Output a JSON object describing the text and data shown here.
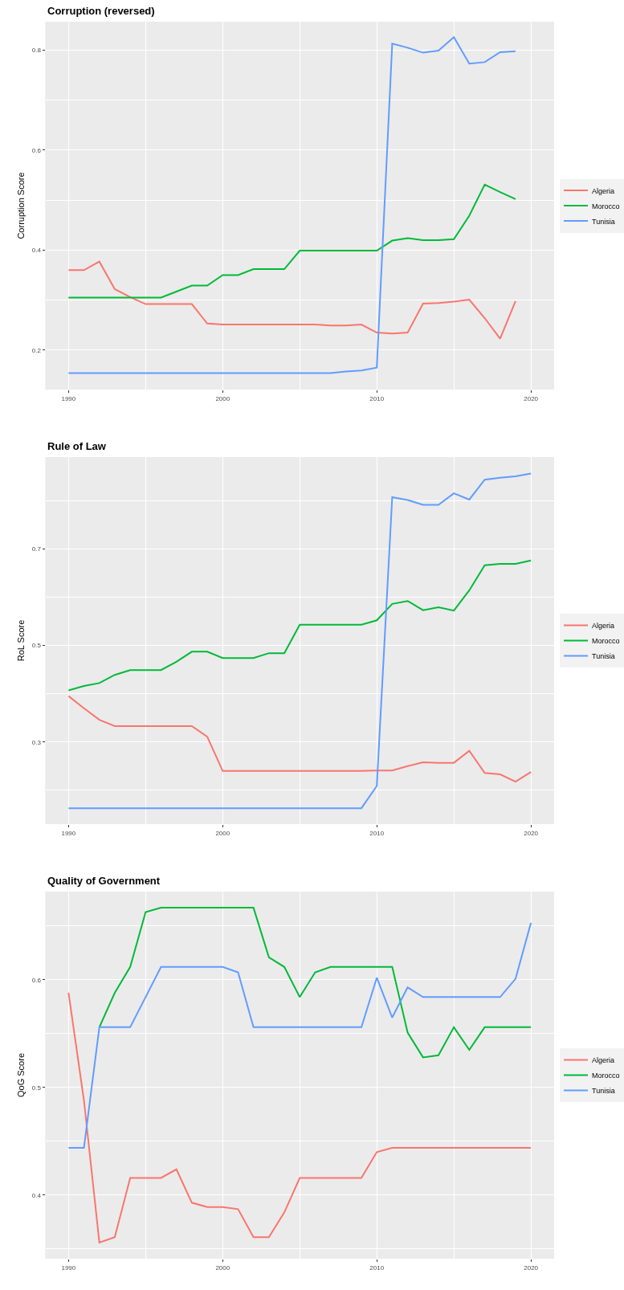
{
  "chart_data": [
    {
      "type": "line",
      "title": "Corruption (reversed)",
      "ylabel": "Corruption Score",
      "grid": true,
      "legend": "right",
      "marker": "none",
      "line_style": "solid",
      "x": [
        1990,
        1991,
        1992,
        1993,
        1994,
        1995,
        1996,
        1997,
        1998,
        1999,
        2000,
        2001,
        2002,
        2003,
        2004,
        2005,
        2006,
        2007,
        2008,
        2009,
        2010,
        2011,
        2012,
        2013,
        2014,
        2015,
        2016,
        2017,
        2018,
        2019
      ],
      "xlim": [
        1988.5,
        2021.5
      ],
      "xticks": [
        1990,
        {
          "value": 1995,
          "label": null
        },
        2000,
        {
          "value": 2005,
          "label": null
        },
        2010,
        {
          "value": 2015,
          "label": null
        },
        2020
      ],
      "ylim": [
        0.121,
        0.857
      ],
      "yticks": [
        0.2,
        {
          "value": 0.3,
          "label": null
        },
        0.4,
        {
          "value": 0.5,
          "label": null
        },
        0.6,
        {
          "value": 0.7,
          "label": null
        },
        0.8
      ],
      "series": [
        {
          "name": "Algeria",
          "color": "#f8766d",
          "values": [
            0.36,
            0.36,
            0.377,
            0.322,
            0.306,
            0.292,
            0.292,
            0.292,
            0.292,
            0.253,
            0.251,
            0.251,
            0.251,
            0.251,
            0.251,
            0.251,
            0.251,
            0.249,
            0.249,
            0.251,
            0.235,
            0.233,
            0.235,
            0.293,
            0.294,
            0.297,
            0.301,
            0.264,
            0.223,
            0.298
          ]
        },
        {
          "name": "Morocco",
          "color": "#00ba38",
          "values": [
            0.305,
            0.305,
            0.305,
            0.305,
            0.305,
            0.305,
            0.305,
            0.317,
            0.329,
            0.329,
            0.35,
            0.35,
            0.362,
            0.362,
            0.362,
            0.399,
            0.399,
            0.399,
            0.399,
            0.399,
            0.399,
            0.419,
            0.424,
            0.42,
            0.42,
            0.422,
            0.469,
            0.531,
            0.516,
            0.502
          ]
        },
        {
          "name": "Tunisia",
          "color": "#619cff",
          "values": [
            0.154,
            0.154,
            0.154,
            0.154,
            0.154,
            0.154,
            0.154,
            0.154,
            0.154,
            0.154,
            0.154,
            0.154,
            0.154,
            0.154,
            0.154,
            0.154,
            0.154,
            0.154,
            0.157,
            0.159,
            0.165,
            0.813,
            0.805,
            0.795,
            0.799,
            0.826,
            0.773,
            0.776,
            0.796,
            0.798
          ]
        }
      ]
    },
    {
      "type": "line",
      "title": "Rule of Law",
      "ylabel": "RoL Score",
      "grid": true,
      "legend": "right",
      "marker": "none",
      "line_style": "solid",
      "x": [
        1990,
        1991,
        1992,
        1993,
        1994,
        1995,
        1996,
        1997,
        1998,
        1999,
        2000,
        2001,
        2002,
        2003,
        2004,
        2005,
        2006,
        2007,
        2008,
        2009,
        2010,
        2011,
        2012,
        2013,
        2014,
        2015,
        2016,
        2017,
        2018,
        2019,
        2020
      ],
      "xlim": [
        1988.5,
        2021.5
      ],
      "xticks": [
        1990,
        {
          "value": 1995,
          "label": null
        },
        2000,
        {
          "value": 2005,
          "label": null
        },
        2010,
        {
          "value": 2015,
          "label": null
        },
        2020
      ],
      "ylim": [
        0.13,
        0.89
      ],
      "yticks": [
        {
          "value": 0.2,
          "label": null
        },
        0.3,
        {
          "value": 0.4,
          "label": null
        },
        0.5,
        {
          "value": 0.6,
          "label": null
        },
        0.7,
        {
          "value": 0.8,
          "label": null
        }
      ],
      "series": [
        {
          "name": "Algeria",
          "color": "#f8766d",
          "values": [
            0.395,
            0.37,
            0.346,
            0.333,
            0.333,
            0.333,
            0.333,
            0.333,
            0.333,
            0.311,
            0.24,
            0.24,
            0.24,
            0.24,
            0.24,
            0.24,
            0.24,
            0.24,
            0.24,
            0.24,
            0.241,
            0.241,
            0.25,
            0.258,
            0.257,
            0.257,
            0.282,
            0.236,
            0.233,
            0.218,
            0.238
          ]
        },
        {
          "name": "Morocco",
          "color": "#00ba38",
          "values": [
            0.407,
            0.416,
            0.422,
            0.439,
            0.449,
            0.449,
            0.449,
            0.466,
            0.487,
            0.487,
            0.474,
            0.474,
            0.474,
            0.484,
            0.484,
            0.543,
            0.543,
            0.543,
            0.543,
            0.543,
            0.552,
            0.586,
            0.592,
            0.573,
            0.579,
            0.572,
            0.614,
            0.666,
            0.669,
            0.669,
            0.676
          ]
        },
        {
          "name": "Tunisia",
          "color": "#619cff",
          "values": [
            0.163,
            0.163,
            0.163,
            0.163,
            0.163,
            0.163,
            0.163,
            0.163,
            0.163,
            0.163,
            0.163,
            0.163,
            0.163,
            0.163,
            0.163,
            0.163,
            0.163,
            0.163,
            0.163,
            0.163,
            0.209,
            0.807,
            0.801,
            0.791,
            0.791,
            0.815,
            0.802,
            0.843,
            0.847,
            0.85,
            0.856
          ]
        }
      ]
    },
    {
      "type": "line",
      "title": "Quality of Government",
      "ylabel": "QoG Score",
      "grid": true,
      "legend": "right",
      "marker": "none",
      "line_style": "solid",
      "x": [
        1990,
        1991,
        1992,
        1993,
        1994,
        1995,
        1996,
        1997,
        1998,
        1999,
        2000,
        2001,
        2002,
        2003,
        2004,
        2005,
        2006,
        2007,
        2008,
        2009,
        2010,
        2011,
        2012,
        2013,
        2014,
        2015,
        2016,
        2017,
        2018,
        2019,
        2020
      ],
      "xlim": [
        1988.5,
        2021.5
      ],
      "xticks": [
        1990,
        {
          "value": 1995,
          "label": null
        },
        2000,
        {
          "value": 2005,
          "label": null
        },
        2010,
        {
          "value": 2015,
          "label": null
        },
        2020
      ],
      "ylim": [
        0.341,
        0.682
      ],
      "yticks": [
        {
          "value": 0.35,
          "label": null
        },
        0.4,
        {
          "value": 0.45,
          "label": null
        },
        0.5,
        {
          "value": 0.55,
          "label": null
        },
        0.6,
        {
          "value": 0.65,
          "label": null
        }
      ],
      "series": [
        {
          "name": "Algeria",
          "color": "#f8766d",
          "values": [
            0.588,
            0.488,
            0.356,
            0.361,
            0.416,
            0.416,
            0.416,
            0.424,
            0.393,
            0.389,
            0.389,
            0.387,
            0.361,
            0.361,
            0.384,
            0.416,
            0.416,
            0.416,
            0.416,
            0.416,
            0.44,
            0.444,
            0.444,
            0.444,
            0.444,
            0.444,
            0.444,
            0.444,
            0.444,
            0.444,
            0.444
          ]
        },
        {
          "name": "Morocco",
          "color": "#00ba38",
          "values": [
            null,
            null,
            0.556,
            0.588,
            0.612,
            0.663,
            0.667,
            0.667,
            0.667,
            0.667,
            0.667,
            0.667,
            0.667,
            0.621,
            0.612,
            0.584,
            0.607,
            0.612,
            0.612,
            0.612,
            0.612,
            0.612,
            0.551,
            0.528,
            0.53,
            0.556,
            0.535,
            0.556,
            0.556,
            0.556,
            0.556
          ]
        },
        {
          "name": "Tunisia",
          "color": "#619cff",
          "values": [
            0.444,
            0.444,
            0.556,
            0.556,
            0.556,
            0.584,
            0.612,
            0.612,
            0.612,
            0.612,
            0.612,
            0.607,
            0.556,
            0.556,
            0.556,
            0.556,
            0.556,
            0.556,
            0.556,
            0.556,
            0.602,
            0.565,
            0.593,
            0.584,
            0.584,
            0.584,
            0.584,
            0.584,
            0.584,
            0.601,
            0.653
          ]
        }
      ]
    }
  ]
}
